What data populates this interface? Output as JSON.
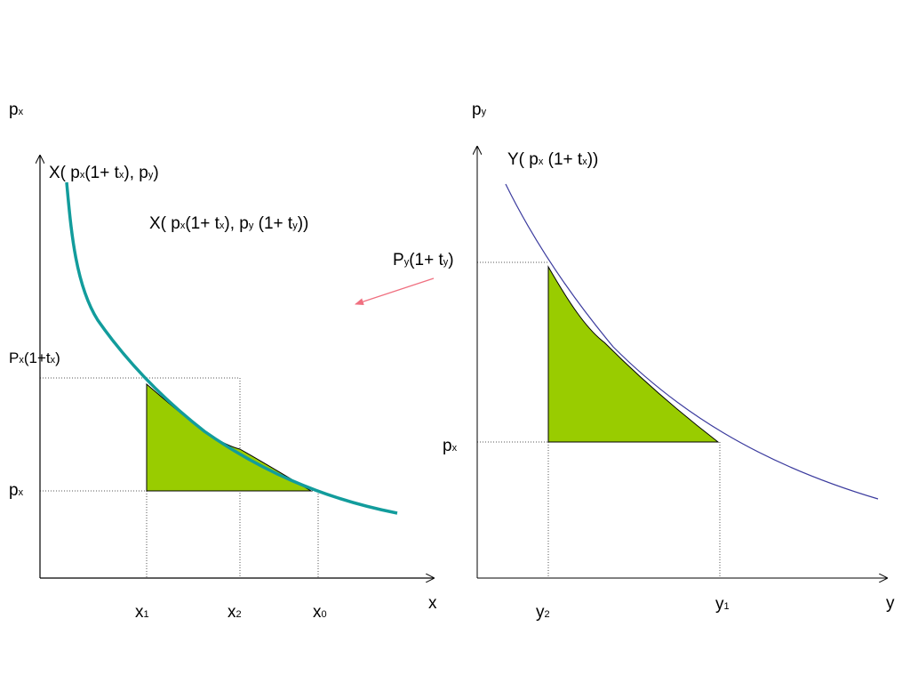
{
  "colors": {
    "background": "#ffffff",
    "demand_curve_left": "#129c9c",
    "demand_curve_right": "#3b3b9e",
    "fill_area": "#99cc00",
    "arrow": "#f07080",
    "guide_lines": "#555555"
  },
  "left_panel": {
    "y_axis_label": {
      "main": "p",
      "sub": "x"
    },
    "x_axis_label": "x",
    "curve_label_1": {
      "p1": "X( p",
      "s1": "x",
      "p2": "(1+ t",
      "s2": "x",
      "p3": "), p",
      "s3": "y",
      "p4": ")"
    },
    "curve_label_2": {
      "p1": "X( p",
      "s1": "x",
      "p2": "(1+ t",
      "s2": "x",
      "p3": "), p",
      "s3": "y",
      "p4": " (1+ t",
      "s4": "y",
      "p5": "))"
    },
    "price_high": {
      "main": "P",
      "sub": "x",
      "rest": "(1+t",
      "sub2": "x",
      "close": ")"
    },
    "price_low": {
      "main": "p",
      "sub": "x"
    },
    "ticks": [
      {
        "main": "x",
        "sub": "1"
      },
      {
        "main": "x",
        "sub": "2"
      },
      {
        "main": "x",
        "sub": "0"
      }
    ]
  },
  "right_panel": {
    "y_axis_label": {
      "main": "p",
      "sub": "y"
    },
    "x_axis_label": "y",
    "curve_label": {
      "p1": "Y( p",
      "s1": "x",
      "p2": " (1+ t",
      "s2": "x",
      "p3": "))"
    },
    "price_high": {
      "main": "P",
      "sub": "y",
      "rest": "(1+ t",
      "sub2": "y",
      "close": ")"
    },
    "price_low": {
      "main": "p",
      "sub": "x"
    },
    "ticks": [
      {
        "main": "y",
        "sub": "2"
      },
      {
        "main": "y",
        "sub": "1"
      }
    ]
  }
}
